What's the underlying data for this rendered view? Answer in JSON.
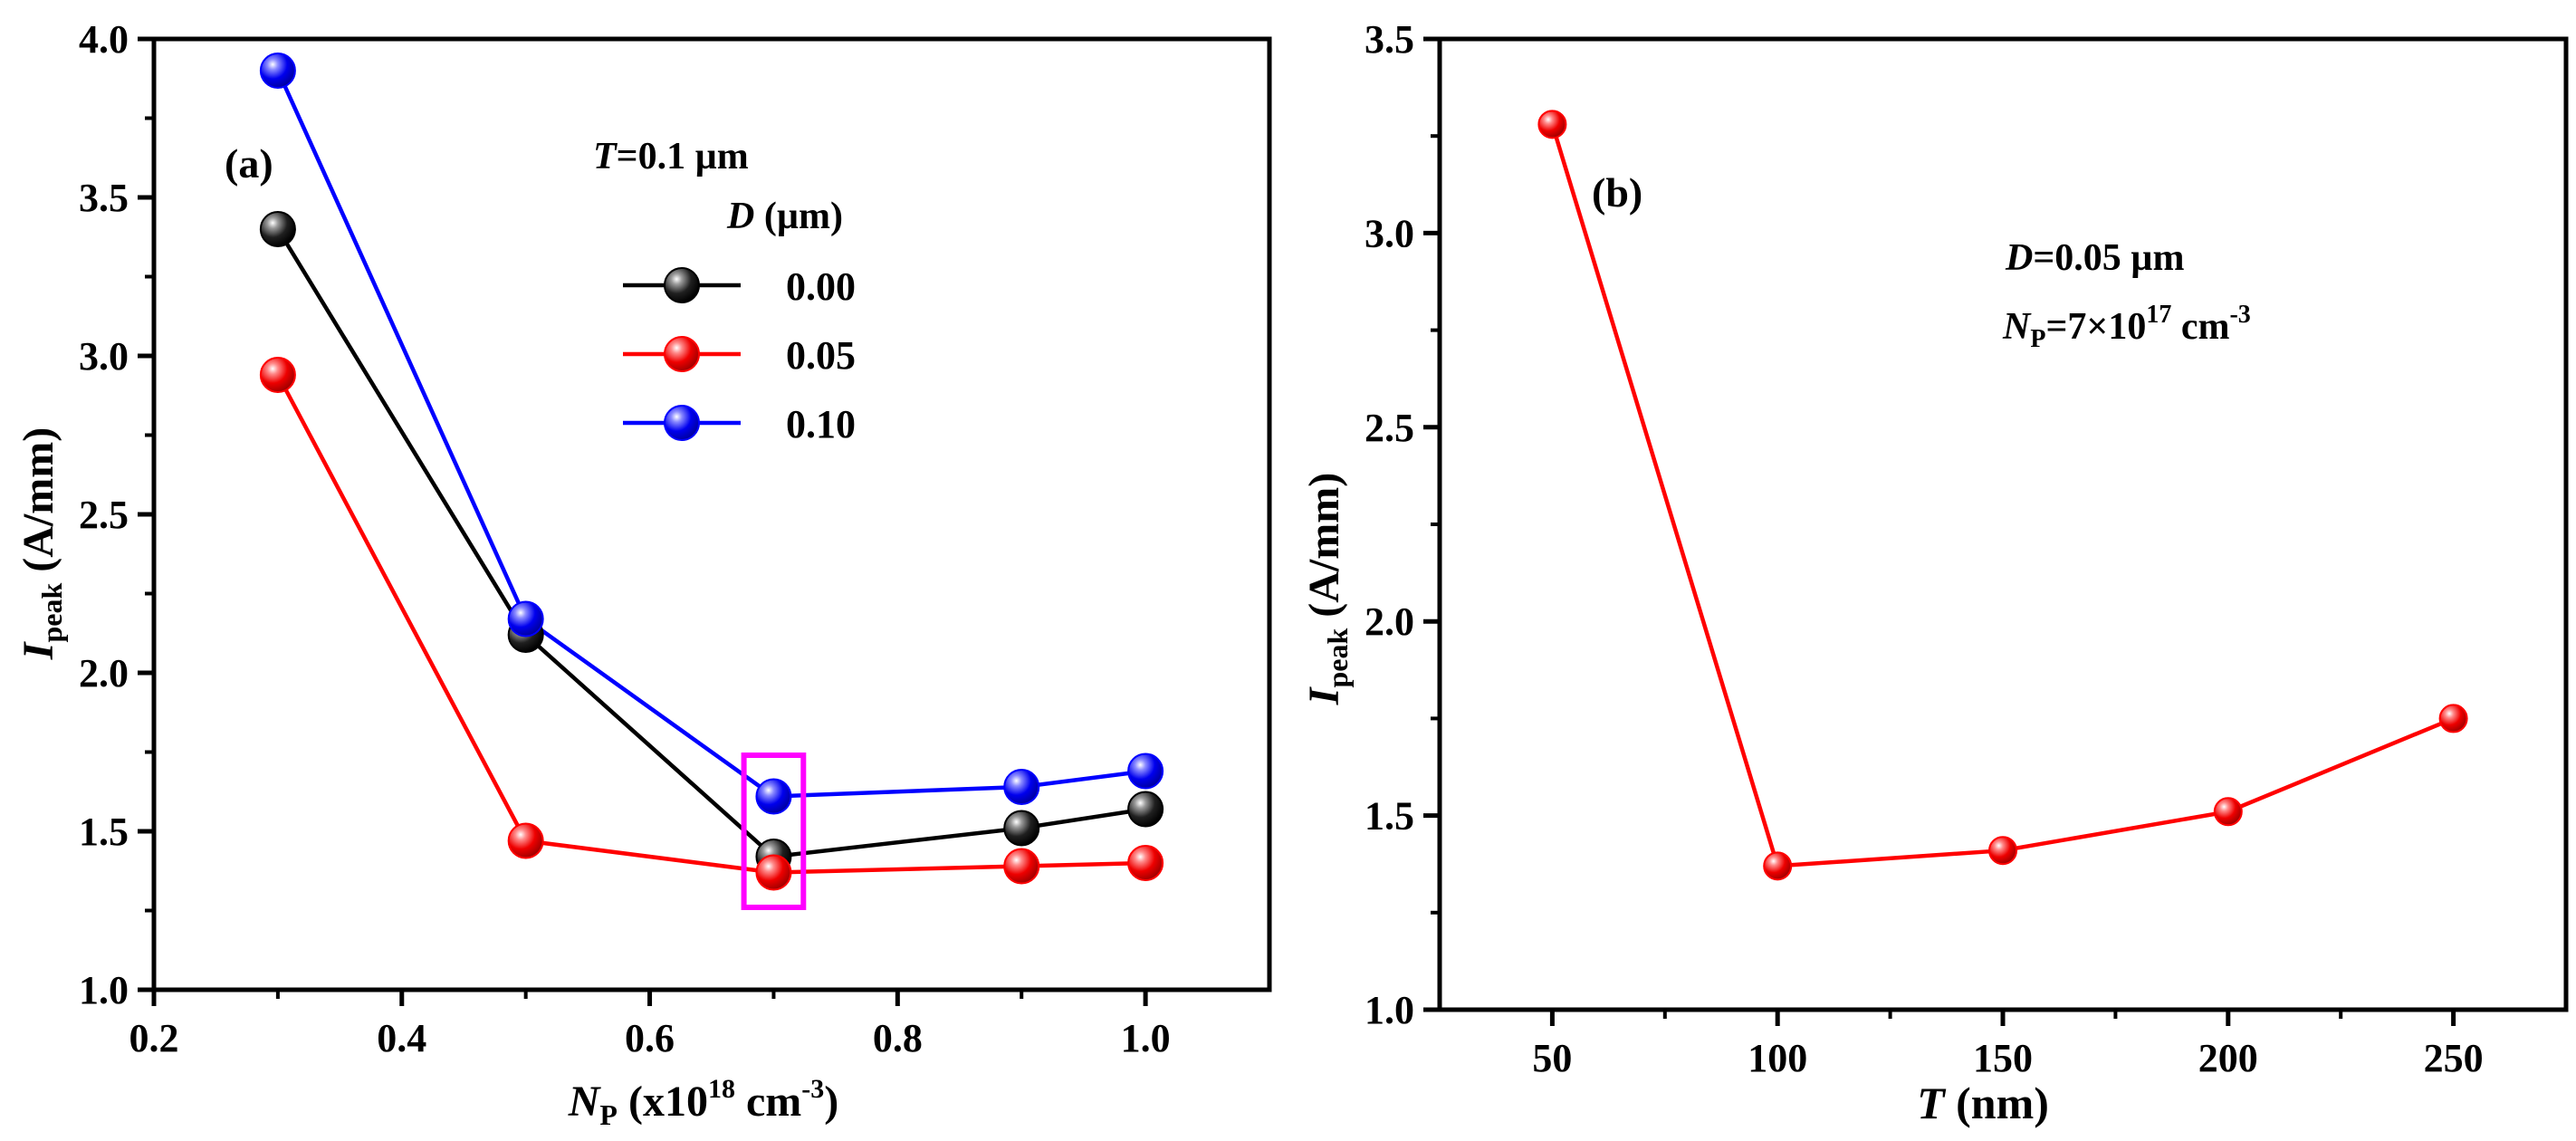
{
  "chart_data": [
    {
      "type": "line",
      "panel_label": "(a)",
      "title": "",
      "xlabel_main": "N",
      "xlabel_sub": "P",
      "xlabel_rest": " (x10",
      "xlabel_sup": "18",
      "xlabel_unit": " cm",
      "xlabel_unit_sup": "-3",
      "xlabel_close": ")",
      "ylabel_main": "I",
      "ylabel_sub": "peak",
      "ylabel_rest": " (A/mm)",
      "xlim": [
        0.2,
        1.1
      ],
      "ylim": [
        1.0,
        4.0
      ],
      "xticks": [
        0.2,
        0.4,
        0.6,
        0.8,
        1.0
      ],
      "xtick_labels": [
        "0.2",
        "0.4",
        "0.6",
        "0.8",
        "1.0"
      ],
      "yticks": [
        1.0,
        1.5,
        2.0,
        2.5,
        3.0,
        3.5,
        4.0
      ],
      "ytick_labels": [
        "1.0",
        "1.5",
        "2.0",
        "2.5",
        "3.0",
        "3.5",
        "4.0"
      ],
      "x": [
        0.3,
        0.5,
        0.7,
        0.9,
        1.0
      ],
      "legend_param_italic": "T",
      "legend_param_rest": "=0.1 µm",
      "legend_title_italic": "D",
      "legend_title_rest": " (µm)",
      "series": [
        {
          "name": "0.00",
          "color": "#000000",
          "values": [
            3.4,
            2.12,
            1.42,
            1.51,
            1.57
          ]
        },
        {
          "name": "0.05",
          "color": "#ff0000",
          "values": [
            2.94,
            1.47,
            1.37,
            1.39,
            1.4
          ]
        },
        {
          "name": "0.10",
          "color": "#0000ff",
          "values": [
            3.9,
            2.17,
            1.61,
            1.64,
            1.69
          ]
        }
      ],
      "highlight": {
        "x": 0.7,
        "y_range": [
          1.26,
          1.74
        ],
        "x_halfwidth": 0.024,
        "color": "#ff00ff"
      }
    },
    {
      "type": "line",
      "panel_label": "(b)",
      "title": "",
      "xlabel_main": "T",
      "xlabel_rest": " (nm)",
      "ylabel_main": "I",
      "ylabel_sub": "peak",
      "ylabel_rest": " (A/mm)",
      "xlim": [
        25,
        275
      ],
      "ylim": [
        1.0,
        3.5
      ],
      "xticks": [
        50,
        100,
        150,
        200,
        250
      ],
      "xtick_labels": [
        "50",
        "100",
        "150",
        "200",
        "250"
      ],
      "yticks": [
        1.0,
        1.5,
        2.0,
        2.5,
        3.0,
        3.5
      ],
      "ytick_labels": [
        "1.0",
        "1.5",
        "2.0",
        "2.5",
        "3.0",
        "3.5"
      ],
      "x": [
        50,
        100,
        150,
        200,
        250
      ],
      "annotation_line1_italic": "D",
      "annotation_line1_rest": "=0.05 µm",
      "annotation_line2_italic": "N",
      "annotation_line2_sub": "P",
      "annotation_line2_rest": "=7×10",
      "annotation_line2_sup": "17",
      "annotation_line2_unit": " cm",
      "annotation_line2_unit_sup": "-3",
      "series": [
        {
          "name": "D=0.05",
          "color": "#ff0000",
          "values": [
            3.28,
            1.37,
            1.41,
            1.51,
            1.75
          ]
        }
      ]
    }
  ]
}
